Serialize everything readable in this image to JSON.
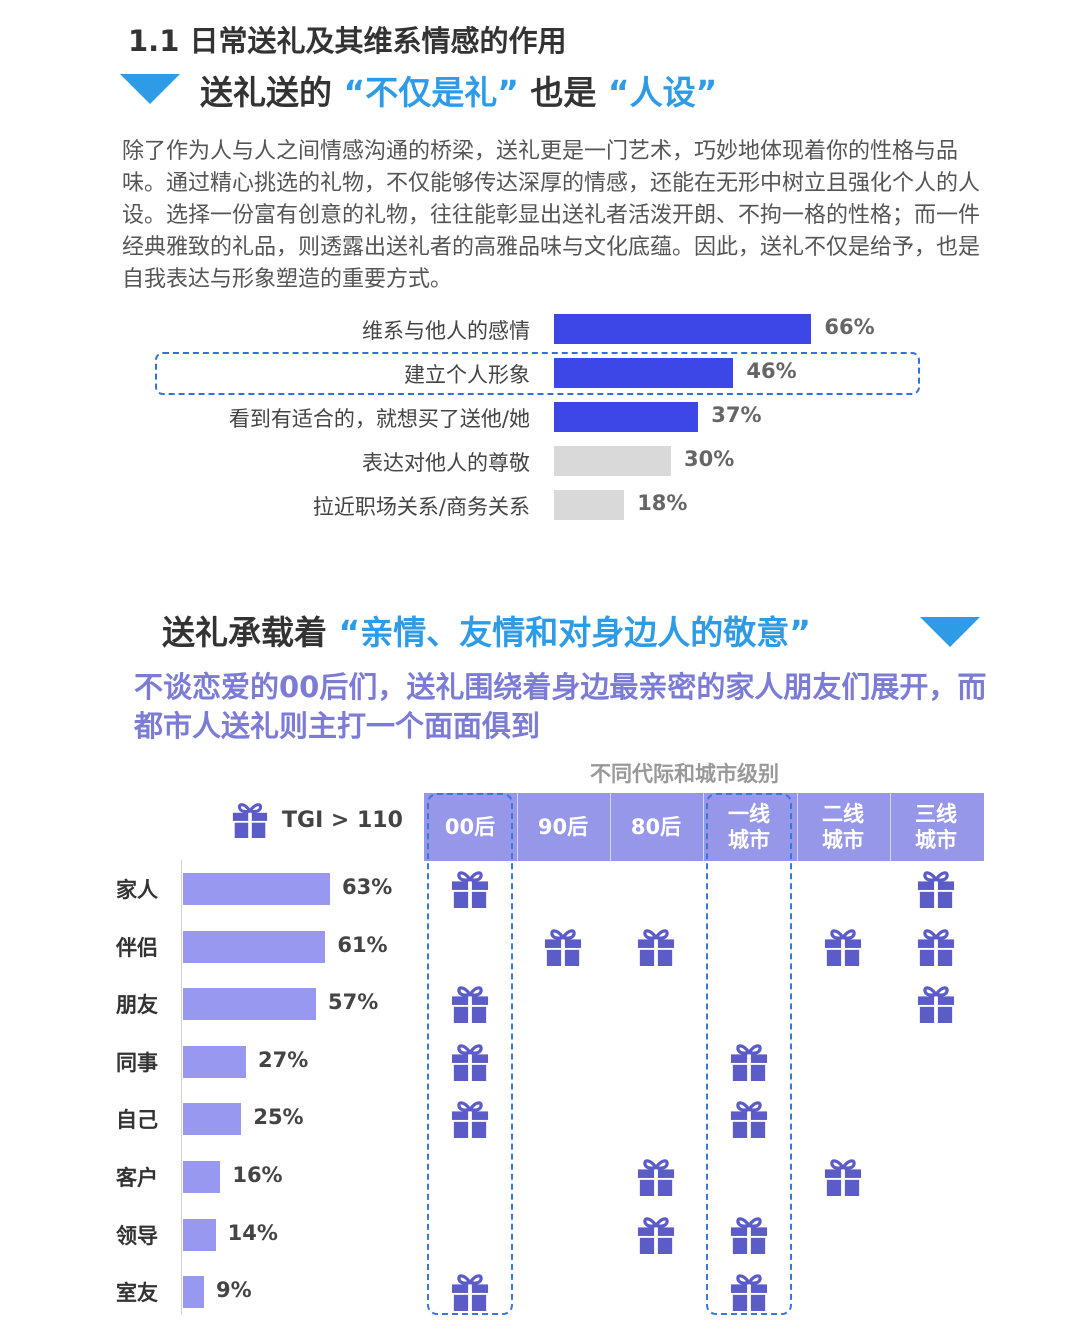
{
  "section_title": "1.1 日常送礼及其维系情感的作用",
  "heading1": {
    "pre": "送礼送的",
    "hl1": "“不仅是礼”",
    "mid": "也是",
    "hl2": "“人设”"
  },
  "intro": "除了作为人与人之间情感沟通的桥梁，送礼更是一门艺术，巧妙地体现着你的性格与品味。通过精心挑选的礼物，不仅能够传达深厚的情感，还能在无形中树立且强化个人的人设。选择一份富有创意的礼物，往往能彰显出送礼者活泼开朗、不拘一格的性格；而一件经典雅致的礼品，则透露出送礼者的高雅品味与文化底蕴。因此，送礼不仅是给予，也是自我表达与形象塑造的重要方式。",
  "heading2": {
    "pre": "送礼承载着",
    "hl": "“亲情、友情和对身边人的敬意”"
  },
  "sub_heading": "不谈恋爱的00后们，送礼围绕着身边最亲密的家人朋友们展开，而都市人送礼则主打一个面面俱到",
  "matrix_title": "不同代际和城市级别",
  "tgi_legend": "TGI > 110",
  "icons": {
    "gift": "gift-icon"
  },
  "colors": {
    "blue_bar": "#3D47E8",
    "gray_bar": "#D9D9D9",
    "purple_bar": "#9898F0",
    "header": "#9797E9",
    "gift": "#5C5CC9",
    "accent": "#2E9BE6"
  },
  "chart_data": [
    {
      "type": "bar",
      "orientation": "horizontal",
      "categories": [
        "维系与他人的感情",
        "建立个人形象",
        "看到有适合的，就想买了送他/她",
        "表达对他人的尊敬",
        "拉近职场关系/商务关系"
      ],
      "values": [
        66,
        46,
        37,
        30,
        18
      ],
      "value_labels": [
        "66%",
        "46%",
        "37%",
        "30%",
        "18%"
      ],
      "highlighted": [
        true,
        true,
        true,
        false,
        false
      ],
      "boxed_category": "建立个人形象",
      "xlim": [
        0,
        100
      ]
    },
    {
      "type": "bar",
      "orientation": "horizontal",
      "categories": [
        "家人",
        "伴侣",
        "朋友",
        "同事",
        "自己",
        "客户",
        "领导",
        "室友"
      ],
      "values": [
        63,
        61,
        57,
        27,
        25,
        16,
        14,
        9
      ],
      "value_labels": [
        "63%",
        "61%",
        "57%",
        "27%",
        "25%",
        "16%",
        "14%",
        "9%"
      ],
      "xlim": [
        0,
        100
      ]
    },
    {
      "type": "table",
      "columns": [
        "00后",
        "90后",
        "80后",
        "一线\n城市",
        "二线\n城市",
        "三线\n城市"
      ],
      "rows": [
        "家人",
        "伴侣",
        "朋友",
        "同事",
        "自己",
        "客户",
        "领导",
        "室友"
      ],
      "marker": "TGI > 110",
      "cells": [
        [
          1,
          0,
          0,
          0,
          0,
          1
        ],
        [
          0,
          1,
          1,
          0,
          1,
          1
        ],
        [
          1,
          0,
          0,
          0,
          0,
          1
        ],
        [
          1,
          0,
          0,
          1,
          0,
          0
        ],
        [
          1,
          0,
          0,
          1,
          0,
          0
        ],
        [
          0,
          0,
          1,
          0,
          1,
          0
        ],
        [
          0,
          0,
          1,
          1,
          0,
          0
        ],
        [
          1,
          0,
          0,
          1,
          0,
          0
        ]
      ],
      "boxed_columns": [
        "00后",
        "一线\n城市"
      ]
    }
  ]
}
